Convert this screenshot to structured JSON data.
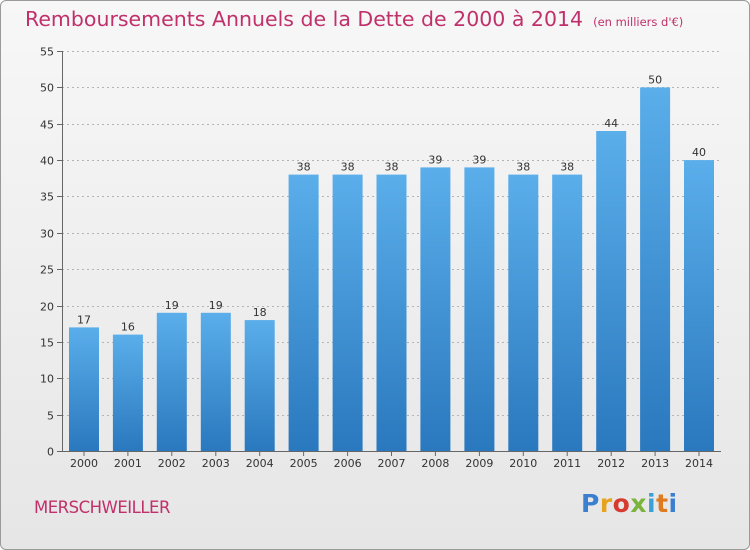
{
  "header": {
    "title": "Remboursements Annuels de la Dette de 2000 à 2014",
    "subtitle": "(en milliers d'€)"
  },
  "footer": {
    "commune": "MERSCHWEILLER",
    "logo": "Proxiti"
  },
  "colors": {
    "accent": "#c0306a",
    "bar_top": "#5aaeea",
    "bar_bottom": "#2a78be",
    "grid": "#b4b4b4"
  },
  "chart_data": {
    "type": "bar",
    "title": "Remboursements Annuels de la Dette de 2000 à 2014",
    "xlabel": "",
    "ylabel": "",
    "categories": [
      "2000",
      "2001",
      "2002",
      "2003",
      "2004",
      "2005",
      "2006",
      "2007",
      "2008",
      "2009",
      "2010",
      "2011",
      "2012",
      "2013",
      "2014"
    ],
    "values": [
      17,
      16,
      19,
      19,
      18,
      38,
      38,
      38,
      39,
      39,
      38,
      38,
      44,
      50,
      40
    ],
    "ylim": [
      0,
      55
    ],
    "yticks": [
      0,
      5,
      10,
      15,
      20,
      25,
      30,
      35,
      40,
      45,
      50,
      55
    ],
    "grid": true,
    "show_data_labels": true
  }
}
